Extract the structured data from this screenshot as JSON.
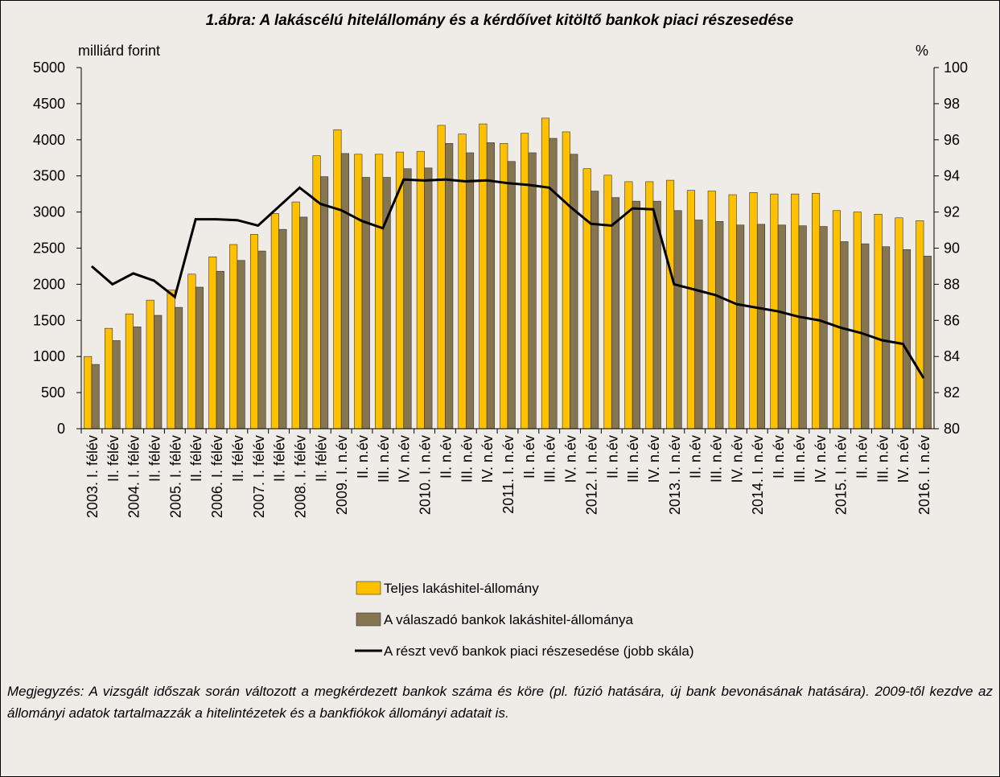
{
  "chart_data": {
    "type": "bar-line",
    "title": "1.ábra: A lakáscélú hitelállomány és a kérdőívet kitöltő bankok piaci részesedése",
    "y_label": "milliárd forint",
    "y2_label": "%",
    "categories": [
      "2003. I. félév",
      "II. félév",
      "2004. I. félév",
      "II. félév",
      "2005. I. félév",
      "II. félév",
      "2006. I. félév",
      "II. félév",
      "2007. I. félév",
      "II. félév",
      "2008. I. félév",
      "II. félév",
      "2009. I. n.év",
      "II. n.év",
      "III. n.év",
      "IV. n.év",
      "2010. I. n.év",
      "II. n.év",
      "III. n.év",
      "IV. n.év",
      "2011. I. n.év",
      "II. n.év",
      "III. n.év",
      "IV. n.év",
      "2012. I. n.év",
      "II. n.év",
      "III. n.év",
      "IV. n.év",
      "2013. I. n.év",
      "II. n.év",
      "III. n.év",
      "IV. n.év",
      "2014. I. n.év",
      "II. n.év",
      "III. n.év",
      "IV. n.év",
      "2015. I. n.év",
      "II. n.év",
      "III. n.év",
      "IV. n.év",
      "2016. I. n.év"
    ],
    "series": [
      {
        "name": "Teljes lakáshitel-állomány",
        "type": "bar",
        "color": "#ffc000",
        "values": [
          1000,
          1390,
          1590,
          1780,
          1920,
          2140,
          2380,
          2550,
          2690,
          2980,
          3140,
          3780,
          4140,
          3800,
          3800,
          3830,
          3840,
          4200,
          4080,
          4220,
          3950,
          4090,
          4300,
          4110,
          3600,
          3510,
          3420,
          3420,
          3440,
          3300,
          3290,
          3240,
          3270,
          3250,
          3250,
          3260,
          3020,
          3000,
          2970,
          2920,
          2880
        ]
      },
      {
        "name": "A válaszadó bankok lakáshitel-állománya",
        "type": "bar",
        "color": "#857550",
        "values": [
          890,
          1220,
          1410,
          1570,
          1680,
          1960,
          2180,
          2330,
          2460,
          2760,
          2930,
          3490,
          3810,
          3480,
          3480,
          3600,
          3610,
          3950,
          3820,
          3960,
          3700,
          3820,
          4020,
          3800,
          3290,
          3200,
          3150,
          3150,
          3020,
          2890,
          2870,
          2820,
          2830,
          2820,
          2810,
          2800,
          2590,
          2560,
          2520,
          2480,
          2390
        ]
      },
      {
        "name": "A részt vevő bankok piaci részesedése (jobb skála)",
        "type": "line",
        "axis": "y2",
        "color": "#000000",
        "values": [
          89.0,
          88.0,
          88.6,
          88.2,
          87.3,
          91.6,
          91.6,
          91.55,
          91.25,
          92.3,
          93.35,
          92.45,
          92.1,
          91.5,
          91.1,
          93.8,
          93.75,
          93.8,
          93.7,
          93.75,
          93.6,
          93.5,
          93.35,
          92.3,
          91.35,
          91.25,
          92.2,
          92.15,
          88.0,
          87.7,
          87.4,
          86.9,
          86.7,
          86.5,
          86.2,
          86.0,
          85.6,
          85.3,
          84.9,
          84.7,
          82.8
        ]
      }
    ],
    "ylim": [
      0,
      5000
    ],
    "yticks": [
      0,
      500,
      1000,
      1500,
      2000,
      2500,
      3000,
      3500,
      4000,
      4500,
      5000
    ],
    "y2lim": [
      80,
      100
    ],
    "y2ticks": [
      80,
      82,
      84,
      86,
      88,
      90,
      92,
      94,
      96,
      98,
      100
    ],
    "note": "Megjegyzés: A vizsgált időszak során változott a megkérdezett bankok száma és köre (pl. fúzió hatására, új bank bevonásának hatására). 2009-től kezdve az állományi adatok tartalmazzák a hitelintézetek és a bankfiókok állományi adatait is."
  }
}
